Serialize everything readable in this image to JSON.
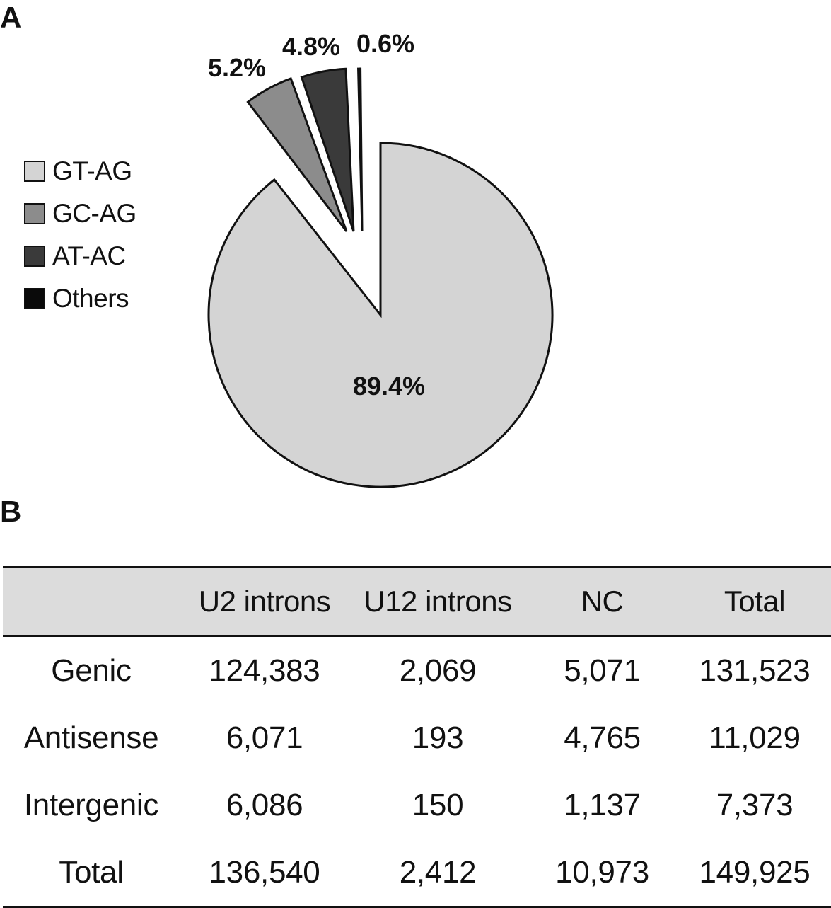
{
  "panels": {
    "a": "A",
    "b": "B"
  },
  "chart_data": {
    "type": "pie",
    "slices": [
      {
        "label": "GT-AG",
        "value": 89.4,
        "value_label": "89.4%",
        "color": "#d4d4d4",
        "exploded": false
      },
      {
        "label": "GC-AG",
        "value": 5.2,
        "value_label": "5.2%",
        "color": "#8c8c8c",
        "exploded": true
      },
      {
        "label": "AT-AC",
        "value": 4.8,
        "value_label": "4.8%",
        "color": "#3a3a3a",
        "exploded": true
      },
      {
        "label": "Others",
        "value": 0.6,
        "value_label": "0.6%",
        "color": "#0a0a0a",
        "exploded": true
      }
    ],
    "legend_position": "left"
  },
  "table": {
    "headers": [
      "",
      "U2 introns",
      "U12 introns",
      "NC",
      "Total"
    ],
    "rows": [
      [
        "Genic",
        "124,383",
        "2,069",
        "5,071",
        "131,523"
      ],
      [
        "Antisense",
        "6,071",
        "193",
        "4,765",
        "11,029"
      ],
      [
        "Intergenic",
        "6,086",
        "150",
        "1,137",
        "7,373"
      ],
      [
        "Total",
        "136,540",
        "2,412",
        "10,973",
        "149,925"
      ]
    ]
  }
}
